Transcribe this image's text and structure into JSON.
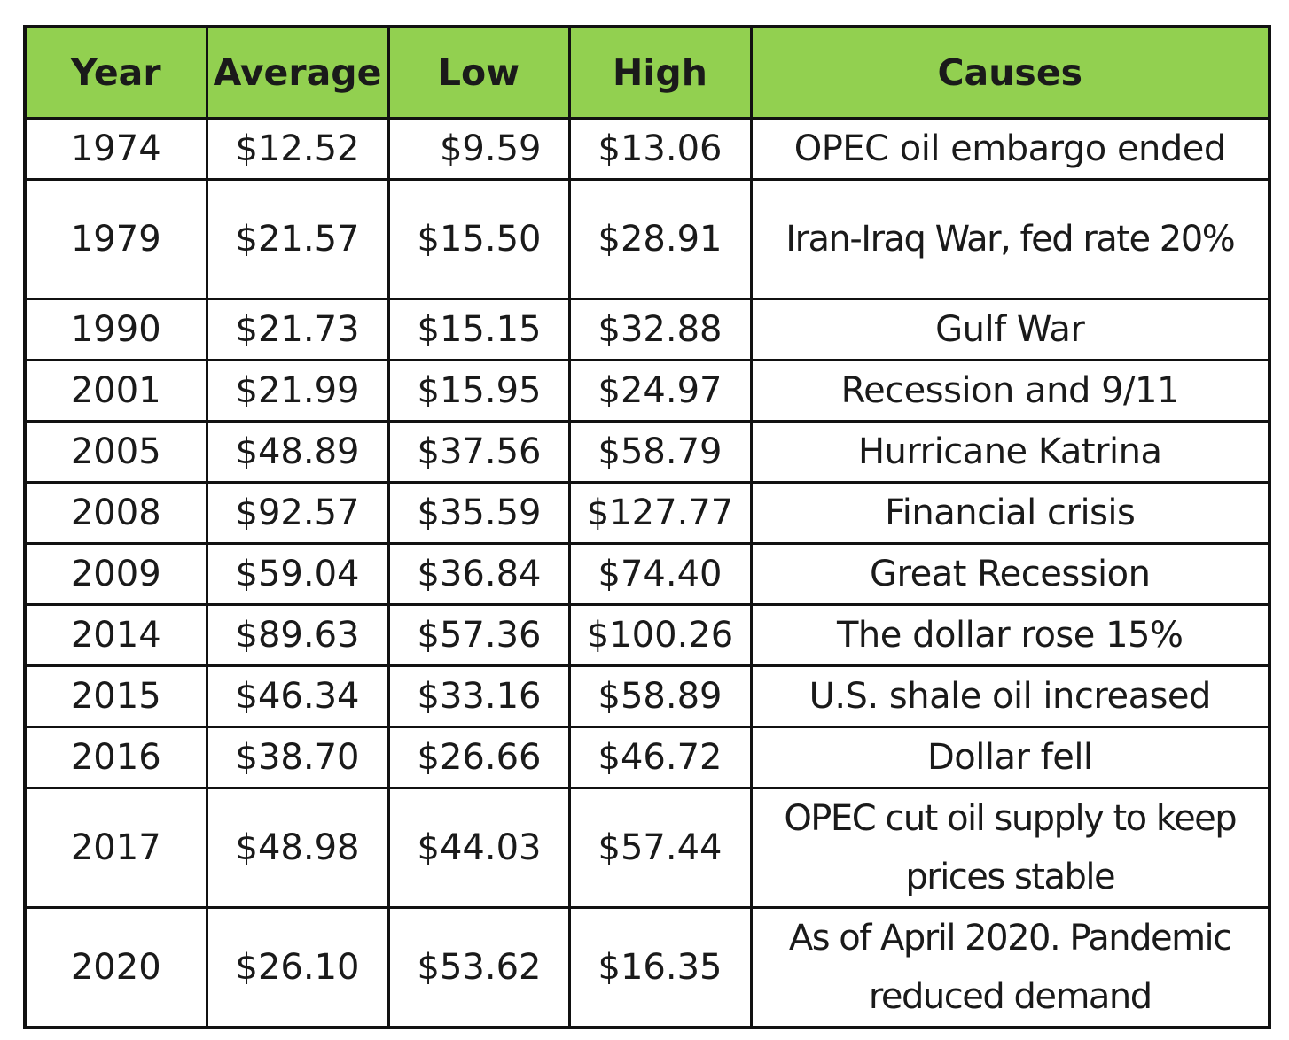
{
  "table": {
    "headers": {
      "year": "Year",
      "average": "Average",
      "low": "Low",
      "high": "High",
      "causes": "Causes"
    },
    "rows": [
      {
        "year": "1974",
        "average": "$12.52",
        "low": "$9.59",
        "high": "$13.06",
        "cause": "OPEC oil embargo ended"
      },
      {
        "year": "1979",
        "average": "$21.57",
        "low": "$15.50",
        "high": "$28.91",
        "cause": "Iran-Iraq War, fed rate 20%"
      },
      {
        "year": "1990",
        "average": "$21.73",
        "low": "$15.15",
        "high": "$32.88",
        "cause": "Gulf War"
      },
      {
        "year": "2001",
        "average": "$21.99",
        "low": "$15.95",
        "high": "$24.97",
        "cause": "Recession and 9/11"
      },
      {
        "year": "2005",
        "average": "$48.89",
        "low": "$37.56",
        "high": "$58.79",
        "cause": "Hurricane Katrina"
      },
      {
        "year": "2008",
        "average": "$92.57",
        "low": "$35.59",
        "high": "$127.77",
        "cause": "Financial crisis"
      },
      {
        "year": "2009",
        "average": "$59.04",
        "low": "$36.84",
        "high": "$74.40",
        "cause": "Great Recession"
      },
      {
        "year": "2014",
        "average": "$89.63",
        "low": "$57.36",
        "high": "$100.26",
        "cause": "The dollar rose 15%"
      },
      {
        "year": "2015",
        "average": "$46.34",
        "low": "$33.16",
        "high": "$58.89",
        "cause": "U.S. shale oil increased"
      },
      {
        "year": "2016",
        "average": "$38.70",
        "low": "$26.66",
        "high": "$46.72",
        "cause": "Dollar fell"
      },
      {
        "year": "2017",
        "average": "$48.98",
        "low": "$44.03",
        "high": "$57.44",
        "cause": "OPEC cut oil supply to keep prices stable"
      },
      {
        "year": "2020",
        "average": "$26.10",
        "low": "$53.62",
        "high": "$16.35",
        "cause": "As of April 2020. Pandemic reduced demand"
      }
    ]
  },
  "colors": {
    "header_bg": "#92d050",
    "border": "#111111",
    "text": "#1a1a1a"
  }
}
